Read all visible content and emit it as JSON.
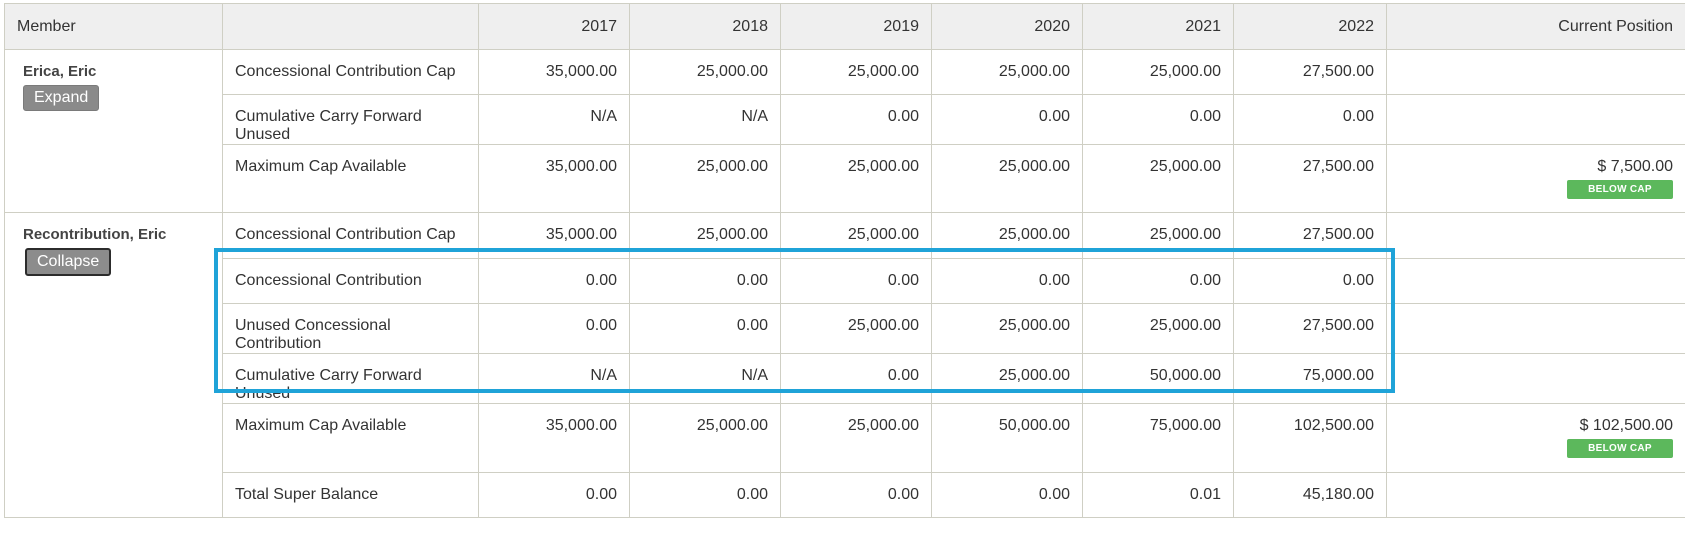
{
  "header": {
    "member": "Member",
    "blank": "",
    "years": [
      "2017",
      "2018",
      "2019",
      "2020",
      "2021",
      "2022"
    ],
    "current_position": "Current Position"
  },
  "members": [
    {
      "name": "Erica, Eric",
      "toggle_label": "Expand",
      "rows": [
        {
          "label": "Concessional Contribution Cap",
          "values": [
            "35,000.00",
            "25,000.00",
            "25,000.00",
            "25,000.00",
            "25,000.00",
            "27,500.00"
          ],
          "current": "",
          "badge": ""
        },
        {
          "label": "Cumulative Carry Forward Unused",
          "values": [
            "N/A",
            "N/A",
            "0.00",
            "0.00",
            "0.00",
            "0.00"
          ],
          "current": "",
          "badge": ""
        },
        {
          "label": "Maximum Cap Available",
          "values": [
            "35,000.00",
            "25,000.00",
            "25,000.00",
            "25,000.00",
            "25,000.00",
            "27,500.00"
          ],
          "current": "$ 7,500.00",
          "badge": "BELOW CAP"
        }
      ]
    },
    {
      "name": "Recontribution, Eric",
      "toggle_label": "Collapse",
      "rows": [
        {
          "label": "Concessional Contribution Cap",
          "values": [
            "35,000.00",
            "25,000.00",
            "25,000.00",
            "25,000.00",
            "25,000.00",
            "27,500.00"
          ],
          "current": "",
          "badge": ""
        },
        {
          "label": "Concessional Contribution",
          "values": [
            "0.00",
            "0.00",
            "0.00",
            "0.00",
            "0.00",
            "0.00"
          ],
          "current": "",
          "badge": ""
        },
        {
          "label": "Unused Concessional Contribution",
          "values": [
            "0.00",
            "0.00",
            "25,000.00",
            "25,000.00",
            "25,000.00",
            "27,500.00"
          ],
          "current": "",
          "badge": ""
        },
        {
          "label": "Cumulative Carry Forward Unused",
          "values": [
            "N/A",
            "N/A",
            "0.00",
            "25,000.00",
            "50,000.00",
            "75,000.00"
          ],
          "current": "",
          "badge": ""
        },
        {
          "label": "Maximum Cap Available",
          "values": [
            "35,000.00",
            "25,000.00",
            "25,000.00",
            "50,000.00",
            "75,000.00",
            "102,500.00"
          ],
          "current": "$ 102,500.00",
          "badge": "BELOW CAP"
        },
        {
          "label": "Total Super Balance",
          "values": [
            "0.00",
            "0.00",
            "0.00",
            "0.00",
            "0.01",
            "45,180.00"
          ],
          "current": "",
          "badge": ""
        }
      ]
    }
  ],
  "colors": {
    "highlight": "#1fa3d8",
    "badge": "#5cb85c",
    "header_bg": "#efefef"
  }
}
